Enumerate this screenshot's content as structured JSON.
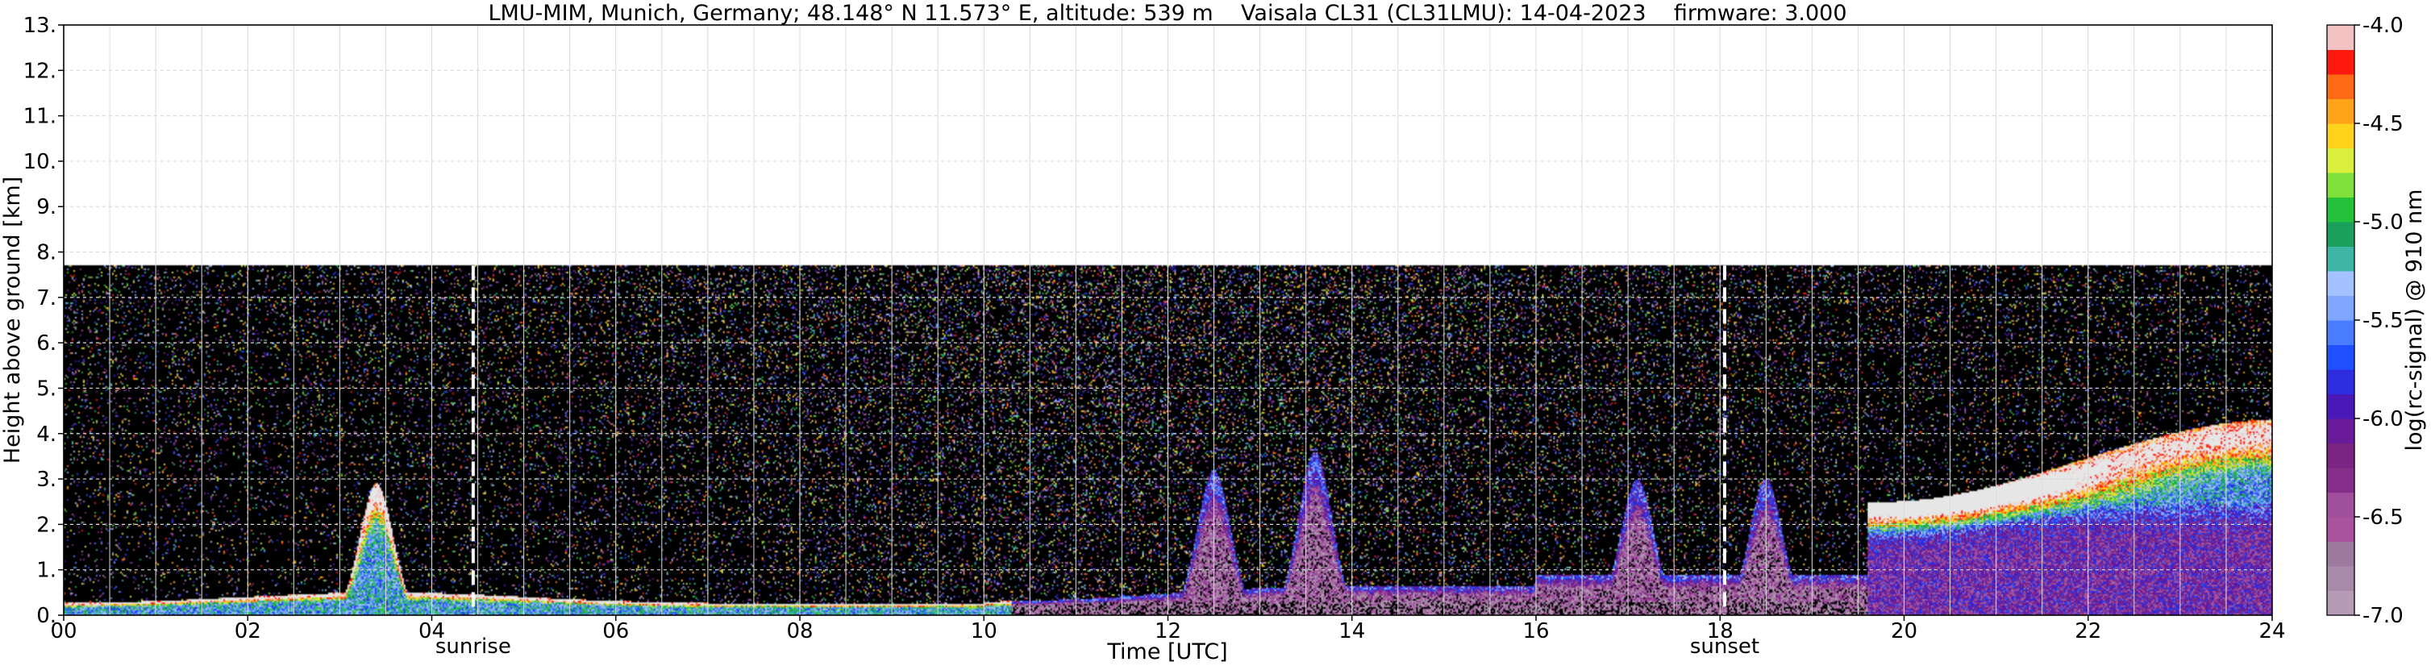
{
  "chart_data": {
    "type": "heatmap",
    "title": "LMU-MIM, Munich, Germany; 48.148° N 11.573° E, altitude: 539 m    Vaisala CL31 (CL31LMU): 14-04-2023    firmware: 3.000",
    "xlabel": "Time [UTC]",
    "ylabel": "Height above ground [km]",
    "xlim": [
      0,
      24
    ],
    "ylim": [
      0,
      13
    ],
    "x_ticks": [
      0,
      2,
      4,
      6,
      8,
      10,
      12,
      14,
      16,
      18,
      20,
      22,
      24
    ],
    "x_tick_labels": [
      "00",
      "02",
      "04",
      "06",
      "08",
      "10",
      "12",
      "14",
      "16",
      "18",
      "20",
      "22",
      "24"
    ],
    "y_ticks": [
      0,
      1,
      2,
      3,
      4,
      5,
      6,
      7,
      8,
      9,
      10,
      11,
      12,
      13
    ],
    "y_tick_labels": [
      "0.",
      "1.",
      "2.",
      "3.",
      "4.",
      "5.",
      "6.",
      "7.",
      "8.",
      "9.",
      "10.",
      "11.",
      "12.",
      "13."
    ],
    "grid": true,
    "measurement_top_km": 7.7,
    "colorbar": {
      "label": "log(rc-signal) @ 910 nm",
      "range": [
        -7.0,
        -4.0
      ],
      "ticks": [
        -7.0,
        -6.5,
        -6.0,
        -5.5,
        -5.0,
        -4.5,
        -4.0
      ],
      "tick_labels": [
        "-7.0",
        "-6.5",
        "-6.0",
        "-5.5",
        "-5.0",
        "-4.5",
        "-4.0"
      ],
      "levels": [
        -7.0,
        -6.875,
        -6.75,
        -6.625,
        -6.5,
        -6.375,
        -6.25,
        -6.125,
        -6.0,
        -5.875,
        -5.75,
        -5.625,
        -5.5,
        -5.375,
        -5.25,
        -5.125,
        -5.0,
        -4.875,
        -4.75,
        -4.625,
        -4.5,
        -4.375,
        -4.25,
        -4.125,
        -4.0
      ],
      "colors": [
        "#b59bb5",
        "#a88aa8",
        "#9c7aa0",
        "#a9539f",
        "#a04f9d",
        "#852f8a",
        "#7a2583",
        "#6a1b9a",
        "#4b18b8",
        "#2e2ee0",
        "#1f4fff",
        "#4a7cff",
        "#7fa7ff",
        "#a3c2ff",
        "#3fb5a5",
        "#1aa05a",
        "#23c23a",
        "#7fe03a",
        "#d8f03c",
        "#ffd21c",
        "#ffa418",
        "#ff6a14",
        "#ff1a10",
        "#f3c3c3",
        "#e6e6e6"
      ]
    },
    "vertical_markers": [
      {
        "label": "sunrise",
        "x": 4.45
      },
      {
        "label": "sunset",
        "x": 18.05
      }
    ],
    "observed_features": {
      "noise_floor_color": "#000000",
      "surface_layer_top_km": 0.4,
      "convective_plumes": [
        {
          "x": 3.4,
          "top_km": 2.9
        },
        {
          "x": 12.5,
          "top_km": 3.2
        },
        {
          "x": 13.6,
          "top_km": 3.6
        },
        {
          "x": 17.1,
          "top_km": 3.0
        },
        {
          "x": 18.5,
          "top_km": 3.0
        }
      ],
      "evening_layer": {
        "x_start": 19.8,
        "x_end": 24,
        "top_start_km": 2.5,
        "top_end_km": 4.3
      }
    }
  }
}
